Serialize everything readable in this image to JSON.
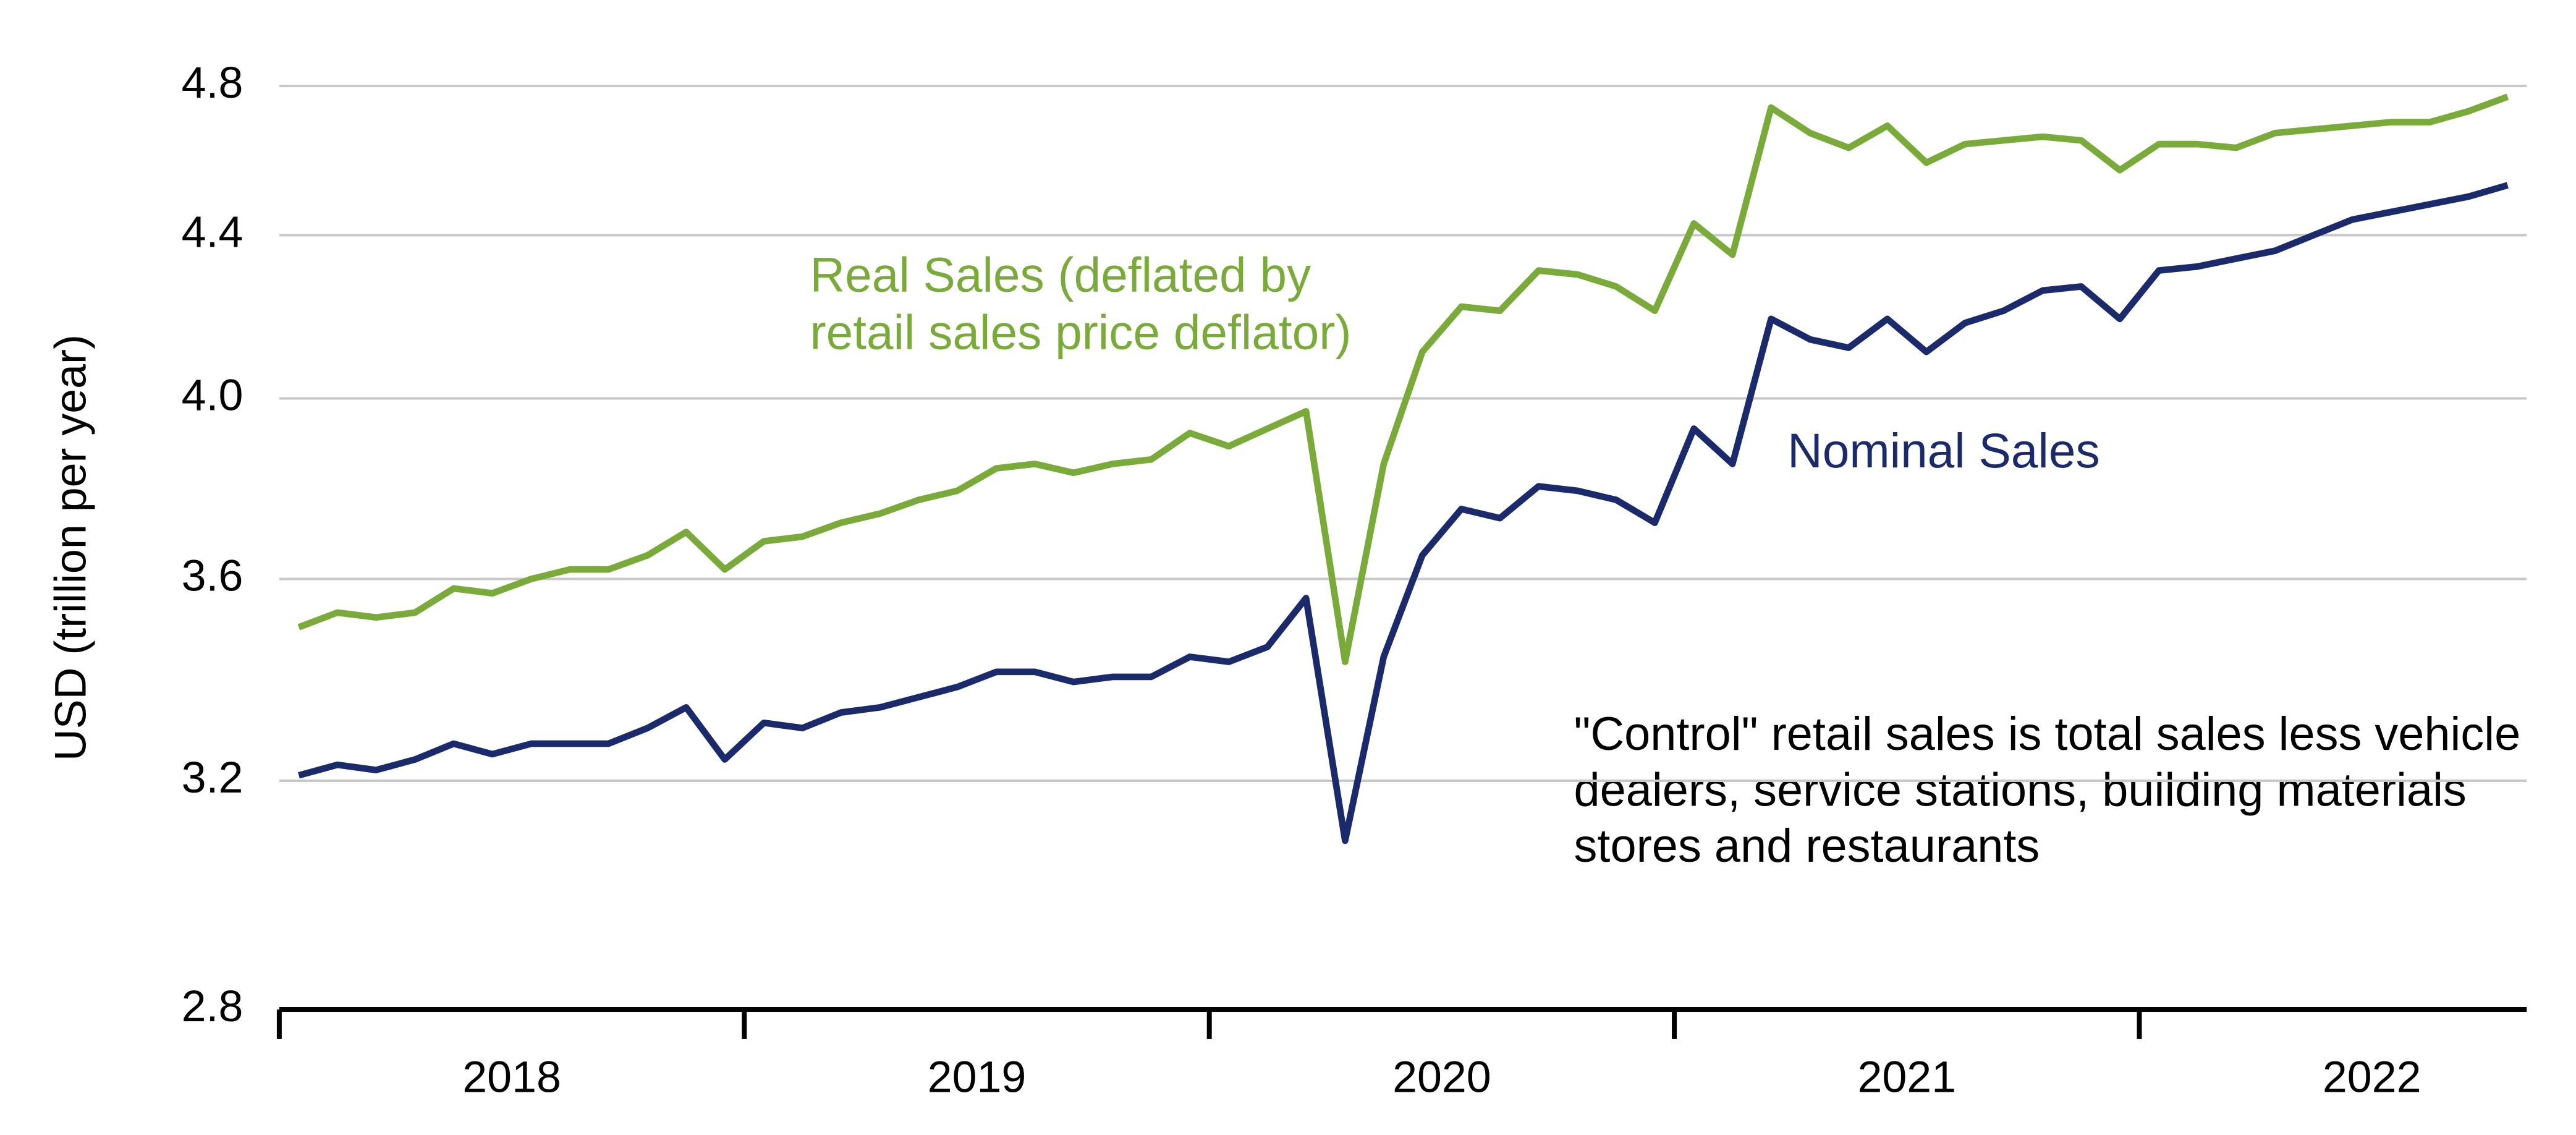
{
  "chart_data": {
    "type": "line",
    "y_label": "USD (trillion per year)",
    "annotation": "\"Control\" retail sales is total sales less vehicle dealers, service stations, building materials stores and restaurants",
    "log_scale": true,
    "grid": true,
    "xlim": [
      2018,
      2022.833
    ],
    "xticks": [
      {
        "value": 2018.5,
        "label": "2018"
      },
      {
        "value": 2019.5,
        "label": "2019"
      },
      {
        "value": 2020.5,
        "label": "2020"
      },
      {
        "value": 2021.5,
        "label": "2021"
      },
      {
        "value": 2022.5,
        "label": "2022"
      }
    ],
    "xtick_marks": [
      2018,
      2019,
      2020,
      2021,
      2022
    ],
    "ylim": [
      2.8,
      4.8
    ],
    "yticks": [
      2.8,
      3.2,
      3.6,
      {
        "value": 4,
        "label": "4.0"
      },
      4.4,
      4.8
    ],
    "x": [
      2018.042,
      2018.125,
      2018.208,
      2018.292,
      2018.375,
      2018.458,
      2018.542,
      2018.625,
      2018.708,
      2018.792,
      2018.875,
      2018.958,
      2019.042,
      2019.125,
      2019.208,
      2019.292,
      2019.375,
      2019.458,
      2019.542,
      2019.625,
      2019.708,
      2019.792,
      2019.875,
      2019.958,
      2020.042,
      2020.125,
      2020.208,
      2020.292,
      2020.375,
      2020.458,
      2020.542,
      2020.625,
      2020.708,
      2020.792,
      2020.875,
      2020.958,
      2021.042,
      2021.125,
      2021.208,
      2021.292,
      2021.375,
      2021.458,
      2021.542,
      2021.625,
      2021.708,
      2021.792,
      2021.875,
      2021.958,
      2022.042,
      2022.125,
      2022.208,
      2022.292,
      2022.375,
      2022.458,
      2022.542,
      2022.625,
      2022.708,
      2022.792
    ],
    "series": [
      {
        "name": "Real Sales (deflated by retail sales price deflator)",
        "color": "#7aab3a",
        "values": [
          3.5,
          3.53,
          3.52,
          3.53,
          3.58,
          3.57,
          3.6,
          3.62,
          3.62,
          3.65,
          3.7,
          3.62,
          3.68,
          3.69,
          3.72,
          3.74,
          3.77,
          3.79,
          3.84,
          3.85,
          3.83,
          3.85,
          3.86,
          3.92,
          3.89,
          3.93,
          3.97,
          3.43,
          3.85,
          4.11,
          4.22,
          4.21,
          4.31,
          4.3,
          4.27,
          4.21,
          4.43,
          4.35,
          4.74,
          4.67,
          4.63,
          4.69,
          4.59,
          4.64,
          4.65,
          4.66,
          4.65,
          4.57,
          4.64,
          4.64,
          4.63,
          4.67,
          4.68,
          4.69,
          4.7,
          4.7,
          4.73,
          4.77
        ]
      },
      {
        "name": "Nominal Sales",
        "color": "#1b2a6b",
        "values": [
          3.21,
          3.23,
          3.22,
          3.24,
          3.27,
          3.25,
          3.27,
          3.27,
          3.27,
          3.3,
          3.34,
          3.24,
          3.31,
          3.3,
          3.33,
          3.34,
          3.36,
          3.38,
          3.41,
          3.41,
          3.39,
          3.4,
          3.4,
          3.44,
          3.43,
          3.46,
          3.56,
          3.09,
          3.44,
          3.65,
          3.75,
          3.73,
          3.8,
          3.79,
          3.77,
          3.72,
          3.93,
          3.85,
          4.19,
          4.14,
          4.12,
          4.19,
          4.11,
          4.18,
          4.21,
          4.26,
          4.27,
          4.19,
          4.31,
          4.32,
          4.34,
          4.36,
          4.4,
          4.44,
          4.46,
          4.48,
          4.5,
          4.53
        ]
      }
    ]
  }
}
